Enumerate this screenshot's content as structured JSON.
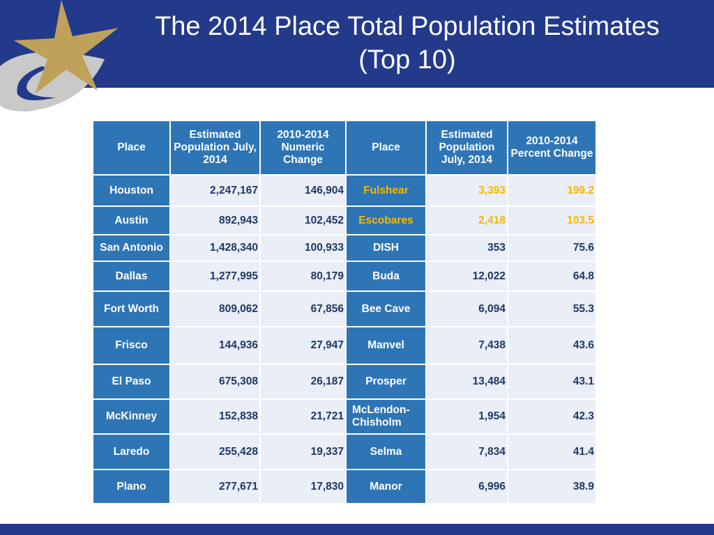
{
  "header": {
    "title": "The 2014 Place Total Population Estimates (Top 10)"
  },
  "table": {
    "columns": [
      "Place",
      "Estimated Population July, 2014",
      "2010-2014 Numeric Change",
      "Place",
      "Estimated Population July, 2014",
      "2010-2014 Percent Change"
    ],
    "rows": [
      [
        "Houston",
        "2,247,167",
        "146,904",
        "Fulshear",
        "3,393",
        "199.2"
      ],
      [
        "Austin",
        "892,943",
        "102,452",
        "Escobares",
        "2,418",
        "103.5"
      ],
      [
        "San Antonio",
        "1,428,340",
        "100,933",
        "DISH",
        "353",
        "75.6"
      ],
      [
        "Dallas",
        "1,277,995",
        "80,179",
        "Buda",
        "12,022",
        "64.8"
      ],
      [
        "Fort Worth",
        "809,062",
        "67,856",
        "Bee Cave",
        "6,094",
        "55.3"
      ],
      [
        "Frisco",
        "144,936",
        "27,947",
        "Manvel",
        "7,438",
        "43.6"
      ],
      [
        "El Paso",
        "675,308",
        "26,187",
        "Prosper",
        "13,484",
        "43.1"
      ],
      [
        "McKinney",
        "152,838",
        "21,721",
        "McLendon-Chisholm",
        "1,954",
        "42.3"
      ],
      [
        "Laredo",
        "255,428",
        "19,337",
        "Selma",
        "7,834",
        "41.4"
      ],
      [
        "Plano",
        "277,671",
        "17,830",
        "Manor",
        "6,996",
        "38.9"
      ]
    ]
  }
}
